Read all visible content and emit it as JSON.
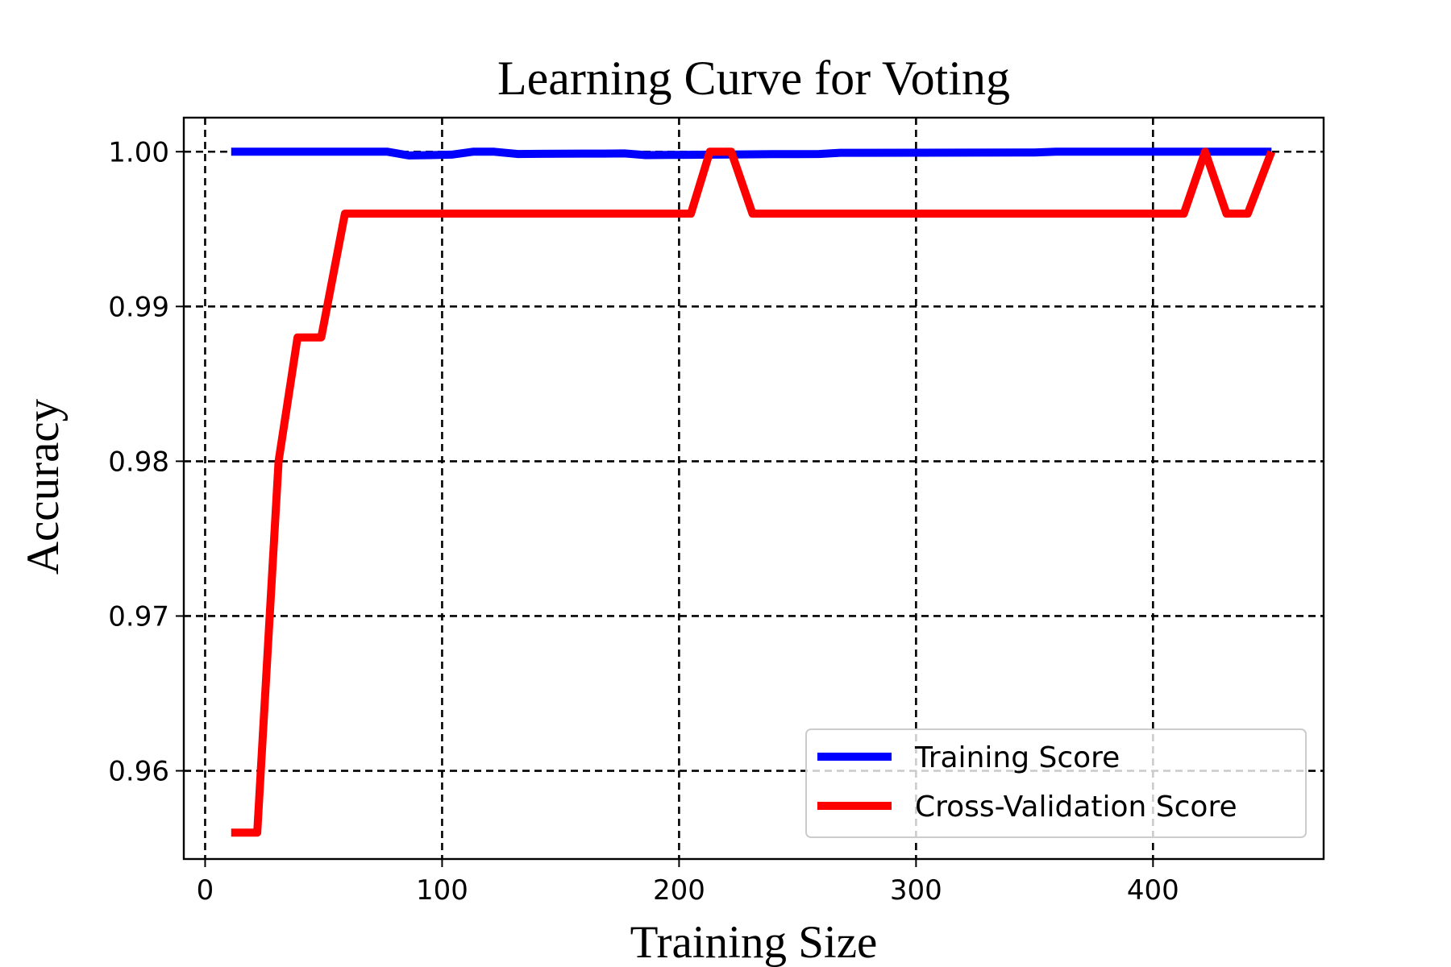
{
  "chart_data": {
    "type": "line",
    "title": "Learning Curve for Voting",
    "xlabel": "Training Size",
    "ylabel": "Accuracy",
    "xlim": [
      -9,
      472
    ],
    "ylim": [
      0.9543,
      1.0022
    ],
    "xticks": [
      0,
      100,
      200,
      300,
      400
    ],
    "xtick_labels": [
      "0",
      "100",
      "200",
      "300",
      "400"
    ],
    "yticks": [
      0.96,
      0.97,
      0.98,
      0.99,
      1.0
    ],
    "ytick_labels": [
      "0.96",
      "0.97",
      "0.98",
      "0.99",
      "1.00"
    ],
    "grid": true,
    "grid_style": "dashed",
    "legend_position": "lower-right",
    "series": [
      {
        "name": "Training Score",
        "color": "#0000ff",
        "x": [
          11,
          21,
          31,
          39,
          48,
          58,
          67,
          77,
          86,
          95,
          104,
          113,
          122,
          132,
          141,
          150,
          159,
          168,
          177,
          186,
          195,
          204,
          213,
          222,
          231,
          240,
          250,
          259,
          268,
          277,
          350,
          359,
          368,
          400,
          450
        ],
        "y": [
          1.0,
          1.0,
          1.0,
          1.0,
          1.0,
          1.0,
          1.0,
          1.0,
          0.99976,
          0.99978,
          0.99981,
          1.0,
          1.0,
          0.99985,
          0.99986,
          0.99987,
          0.99988,
          0.99988,
          0.99989,
          0.99978,
          0.99979,
          0.9998,
          0.99981,
          0.99982,
          0.99983,
          0.99984,
          0.99984,
          0.99985,
          0.99993,
          0.99993,
          0.99995,
          1.0,
          1.0,
          1.0,
          1.0
        ]
      },
      {
        "name": "Cross-Validation Score",
        "color": "#ff0000",
        "x": [
          11,
          22,
          31,
          39,
          49,
          59,
          68,
          77,
          100,
          150,
          205,
          213,
          222,
          231,
          240,
          300,
          350,
          413,
          422,
          431,
          440,
          450
        ],
        "y": [
          0.956,
          0.956,
          0.98,
          0.988,
          0.988,
          0.996,
          0.996,
          0.996,
          0.996,
          0.996,
          0.996,
          1.0,
          1.0,
          0.996,
          0.996,
          0.996,
          0.996,
          0.996,
          1.0,
          0.996,
          0.996,
          1.0
        ]
      }
    ]
  }
}
